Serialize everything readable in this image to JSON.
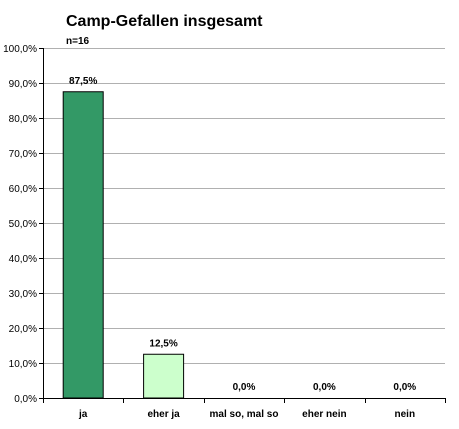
{
  "chart_data": {
    "type": "bar",
    "title": "Camp-Gefallen insgesamt",
    "subtitle": "n=16",
    "categories": [
      "ja",
      "eher ja",
      "mal so, mal so",
      "eher nein",
      "nein"
    ],
    "values": [
      87.5,
      12.5,
      0.0,
      0.0,
      0.0
    ],
    "data_labels": [
      "87,5%",
      "12,5%",
      "0,0%",
      "0,0%",
      "0,0%"
    ],
    "ylim": [
      0,
      100
    ],
    "yticks": [
      0,
      10,
      20,
      30,
      40,
      50,
      60,
      70,
      80,
      90,
      100
    ],
    "ytick_labels": [
      "0,0%",
      "10,0%",
      "20,0%",
      "30,0%",
      "40,0%",
      "50,0%",
      "60,0%",
      "70,0%",
      "80,0%",
      "90,0%",
      "100,0%"
    ],
    "grid": true,
    "bar_colors": [
      "#339966",
      "#ccffcc",
      "#ccffcc",
      "#ccffcc",
      "#ccffcc"
    ],
    "xlabel": "",
    "ylabel": ""
  }
}
